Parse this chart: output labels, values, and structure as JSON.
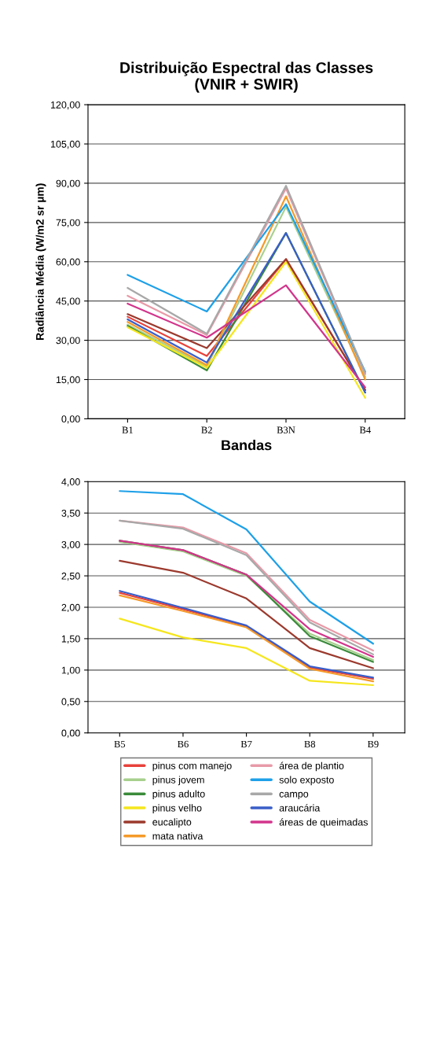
{
  "chart_data": [
    {
      "type": "line",
      "title": "Distribuição Espectral das Classes\n(VNIR + SWIR)",
      "xlabel": "Bandas",
      "ylabel": "Radiância Média (W/m2 sr µm)",
      "categories": [
        "B1",
        "B2",
        "B3N",
        "B4"
      ],
      "ylim": [
        0,
        120
      ],
      "yticks": [
        {
          "value": 0,
          "label": "0,00"
        },
        {
          "value": 15,
          "label": "15,00"
        },
        {
          "value": 30,
          "label": "30,00"
        },
        {
          "value": 45,
          "label": "45,00"
        },
        {
          "value": 60,
          "label": "60,00"
        },
        {
          "value": 75,
          "label": "75,00"
        },
        {
          "value": 90,
          "label": "90,00"
        },
        {
          "value": 105,
          "label": "105,00"
        },
        {
          "value": 120,
          "label": "120,00"
        }
      ],
      "grid": "y",
      "legend": false,
      "series": [
        {
          "color": "#e8413a",
          "values": [
            39,
            24,
            61,
            11
          ]
        },
        {
          "color": "#a8d08d",
          "values": [
            36,
            20,
            81,
            16
          ]
        },
        {
          "color": "#3a8a3a",
          "values": [
            35.5,
            18.5,
            71,
            10
          ]
        },
        {
          "color": "#f5e61e",
          "values": [
            35,
            19.5,
            60,
            8
          ]
        },
        {
          "color": "#9c3a2e",
          "values": [
            40,
            27,
            61,
            11
          ]
        },
        {
          "color": "#f59a2a",
          "values": [
            37,
            20.5,
            85,
            15
          ]
        },
        {
          "color": "#e89aa8",
          "values": [
            47,
            32,
            88,
            17
          ]
        },
        {
          "color": "#1ea0e8",
          "values": [
            55,
            41,
            82,
            18
          ]
        },
        {
          "color": "#a8a8a8",
          "values": [
            50,
            32.5,
            89,
            17.5
          ]
        },
        {
          "color": "#3a5ec8",
          "values": [
            38,
            21.5,
            71,
            10
          ]
        },
        {
          "color": "#d2358c",
          "values": [
            44,
            31,
            51,
            12
          ]
        }
      ]
    },
    {
      "type": "line",
      "categories": [
        "B5",
        "B6",
        "B7",
        "B8",
        "B9"
      ],
      "ylim": [
        0,
        4
      ],
      "yticks": [
        {
          "value": 0,
          "label": "0,00"
        },
        {
          "value": 0.5,
          "label": "0,50"
        },
        {
          "value": 1,
          "label": "1,00"
        },
        {
          "value": 1.5,
          "label": "1,50"
        },
        {
          "value": 2,
          "label": "2,00"
        },
        {
          "value": 2.5,
          "label": "2,50"
        },
        {
          "value": 3,
          "label": "3,00"
        },
        {
          "value": 3.5,
          "label": "3,50"
        },
        {
          "value": 4,
          "label": "4,00"
        }
      ],
      "grid": "y",
      "legend": "bottom",
      "series": [
        {
          "name": "pinus com manejo",
          "color": "#e8413a",
          "values": [
            2.23,
            1.97,
            1.7,
            1.04,
            0.86
          ]
        },
        {
          "name": "pinus jovem",
          "color": "#a8d08d",
          "values": [
            3.04,
            2.89,
            2.5,
            1.58,
            1.16
          ]
        },
        {
          "name": "pinus adulto",
          "color": "#3a8a3a",
          "values": [
            3.06,
            2.91,
            2.52,
            1.54,
            1.13
          ]
        },
        {
          "name": "pinus velho",
          "color": "#f5e61e",
          "values": [
            1.82,
            1.52,
            1.35,
            0.83,
            0.76
          ]
        },
        {
          "name": "eucalipto",
          "color": "#9c3a2e",
          "values": [
            2.74,
            2.55,
            2.14,
            1.35,
            1.03
          ]
        },
        {
          "name": "mata nativa",
          "color": "#f59a2a",
          "values": [
            2.19,
            1.94,
            1.68,
            1.02,
            0.82
          ]
        },
        {
          "name": "área de plantio",
          "color": "#e89aa8",
          "values": [
            3.38,
            3.27,
            2.86,
            1.8,
            1.31
          ]
        },
        {
          "name": "solo exposto",
          "color": "#1ea0e8",
          "values": [
            3.85,
            3.8,
            3.24,
            2.09,
            1.42
          ]
        },
        {
          "name": "campo",
          "color": "#a8a8a8",
          "values": [
            3.38,
            3.25,
            2.83,
            1.76,
            1.25
          ]
        },
        {
          "name": "araucária",
          "color": "#3a5ec8",
          "values": [
            2.26,
            1.99,
            1.71,
            1.06,
            0.88
          ]
        },
        {
          "name": "áreas de queimadas",
          "color": "#d2358c",
          "values": [
            3.06,
            2.91,
            2.52,
            1.65,
            1.21
          ]
        }
      ]
    }
  ]
}
